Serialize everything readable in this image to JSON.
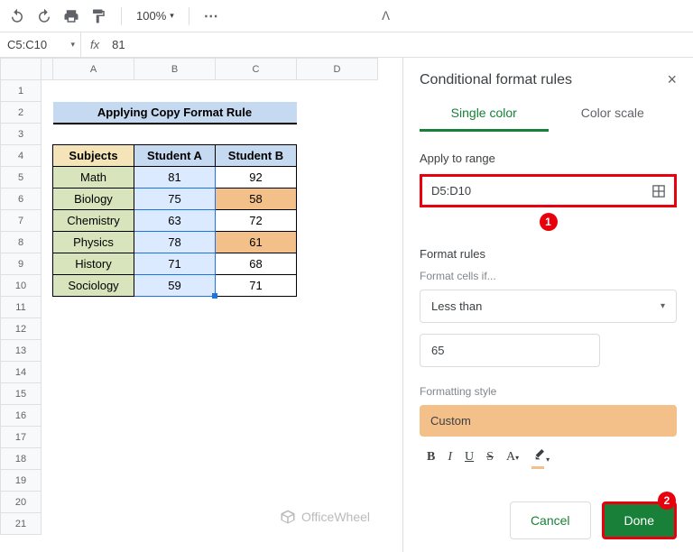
{
  "toolbar": {
    "zoom": "100%"
  },
  "formula": {
    "nameBox": "C5:C10",
    "value": "81"
  },
  "columns": [
    "A",
    "B",
    "C",
    "D"
  ],
  "rows": [
    1,
    2,
    3,
    4,
    5,
    6,
    7,
    8,
    9,
    10,
    11,
    12,
    13,
    14,
    15,
    16,
    17,
    18,
    19,
    20,
    21
  ],
  "table": {
    "title": "Applying Copy Format Rule",
    "headers": {
      "subj": "Subjects",
      "studA": "Student A",
      "studB": "Student B"
    },
    "data": [
      {
        "subj": "Math",
        "a": "81",
        "b": "92",
        "aHl": false,
        "bHl": false
      },
      {
        "subj": "Biology",
        "a": "75",
        "b": "58",
        "aHl": false,
        "bHl": true
      },
      {
        "subj": "Chemistry",
        "a": "63",
        "b": "72",
        "aHl": true,
        "bHl": false
      },
      {
        "subj": "Physics",
        "a": "78",
        "b": "61",
        "aHl": false,
        "bHl": true
      },
      {
        "subj": "History",
        "a": "71",
        "b": "68",
        "aHl": false,
        "bHl": false
      },
      {
        "subj": "Sociology",
        "a": "59",
        "b": "71",
        "aHl": true,
        "bHl": false
      }
    ]
  },
  "sidebar": {
    "title": "Conditional format rules",
    "tabs": {
      "single": "Single color",
      "scale": "Color scale"
    },
    "applyRangeLabel": "Apply to range",
    "rangeValue": "D5:D10",
    "formatRulesLabel": "Format rules",
    "cellsIfLabel": "Format cells if...",
    "condition": "Less than",
    "threshold": "65",
    "styleLabel": "Formatting style",
    "stylePreview": "Custom",
    "cancel": "Cancel",
    "done": "Done"
  },
  "callouts": {
    "c1": "1",
    "c2": "2"
  },
  "watermark": "OfficeWheel",
  "colors": {
    "highlight": "#f4c08a",
    "greenBtn": "#188038",
    "red": "#e8000d",
    "selBlue": "#1a73e8"
  }
}
